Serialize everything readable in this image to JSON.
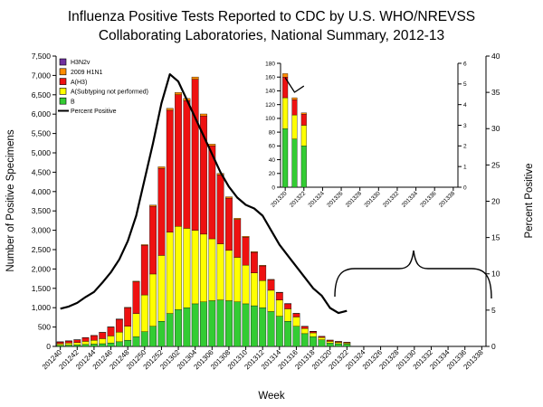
{
  "title_line1": "Influenza Positive Tests Reported to CDC by U.S. WHO/NREVSS",
  "title_line2": "Collaborating Laboratories, National Summary, 2012-13",
  "axes": {
    "y_left_label": "Number of Positive Specimens",
    "y_right_label": "Percent Positive",
    "x_label": "Week"
  },
  "legend": [
    {
      "label": "H3N2v",
      "color": "#7030A0",
      "type": "box"
    },
    {
      "label": "2009 H1N1",
      "color": "#FF8C00",
      "type": "box"
    },
    {
      "label": "A(H3)",
      "color": "#EE1111",
      "type": "box"
    },
    {
      "label": "A(Subtyping not performed)",
      "color": "#FFFF00",
      "type": "box"
    },
    {
      "label": "B",
      "color": "#33CC33",
      "type": "box"
    },
    {
      "label": "Percent Positive",
      "color": "#000000",
      "type": "line"
    }
  ],
  "chart_data": {
    "type": "bar",
    "stacked": true,
    "weeks": [
      "201240",
      "201241",
      "201242",
      "201243",
      "201244",
      "201245",
      "201246",
      "201247",
      "201248",
      "201249",
      "201250",
      "201251",
      "201252",
      "201301",
      "201302",
      "201303",
      "201304",
      "201305",
      "201306",
      "201307",
      "201308",
      "201309",
      "201310",
      "201311",
      "201312",
      "201313",
      "201314",
      "201315",
      "201316",
      "201317",
      "201318",
      "201319",
      "201320",
      "201321",
      "201322"
    ],
    "series": [
      {
        "name": "B",
        "color": "#33CC33",
        "values": [
          30,
          35,
          40,
          50,
          60,
          70,
          90,
          120,
          160,
          250,
          380,
          520,
          650,
          850,
          950,
          1000,
          1100,
          1150,
          1180,
          1200,
          1180,
          1150,
          1100,
          1050,
          1000,
          900,
          780,
          650,
          520,
          330,
          250,
          170,
          85,
          70,
          60
        ]
      },
      {
        "name": "A(Subtyping not performed)",
        "color": "#FFFF00",
        "values": [
          40,
          50,
          60,
          80,
          100,
          130,
          180,
          250,
          360,
          600,
          950,
          1350,
          1700,
          2100,
          2150,
          2050,
          1900,
          1750,
          1600,
          1450,
          1300,
          1150,
          1000,
          850,
          700,
          550,
          420,
          320,
          240,
          130,
          100,
          62,
          45,
          35,
          30
        ]
      },
      {
        "name": "A(H3)",
        "color": "#EE1111",
        "values": [
          45,
          55,
          70,
          95,
          120,
          160,
          230,
          330,
          480,
          820,
          1280,
          1750,
          2250,
          3150,
          3400,
          3300,
          3900,
          3050,
          2400,
          1780,
          1350,
          980,
          720,
          530,
          380,
          270,
          190,
          130,
          90,
          55,
          37,
          26,
          30,
          22,
          16
        ]
      },
      {
        "name": "2009 H1N1",
        "color": "#FF8C00",
        "values": [
          2,
          2,
          3,
          3,
          4,
          5,
          6,
          8,
          10,
          15,
          20,
          30,
          40,
          50,
          60,
          55,
          60,
          55,
          45,
          40,
          35,
          30,
          25,
          20,
          15,
          12,
          10,
          8,
          6,
          5,
          4,
          3,
          5,
          3,
          2
        ]
      },
      {
        "name": "H3N2v",
        "color": "#7030A0",
        "values": [
          3,
          2,
          1,
          0,
          0,
          0,
          0,
          0,
          0,
          0,
          0,
          0,
          0,
          0,
          0,
          0,
          0,
          0,
          0,
          0,
          0,
          0,
          0,
          0,
          0,
          0,
          0,
          0,
          0,
          0,
          0,
          0,
          0,
          0,
          0
        ]
      }
    ],
    "percent_positive": [
      5.2,
      5.5,
      6.0,
      6.8,
      7.5,
      8.8,
      10.2,
      12.0,
      14.5,
      18.0,
      23.0,
      28.0,
      33.5,
      37.5,
      36.5,
      34.0,
      31.5,
      29.0,
      26.5,
      24.0,
      22.0,
      20.5,
      19.5,
      19.0,
      18.0,
      16.0,
      14.0,
      12.5,
      11.0,
      9.5,
      8.0,
      7.0,
      5.3,
      4.6,
      4.9
    ],
    "x_ticks": [
      "201240",
      "201242",
      "201244",
      "201246",
      "201248",
      "201250",
      "201252",
      "201302",
      "201304",
      "201306",
      "201308",
      "201310",
      "201312",
      "201314",
      "201316",
      "201318",
      "201320",
      "201322",
      "201324",
      "201326",
      "201328",
      "201330",
      "201332",
      "201334",
      "201336",
      "201338"
    ],
    "x_tick_every": 2,
    "x_slots_total": 51,
    "ylim_left": [
      0,
      7500
    ],
    "ylim_right": [
      0,
      40
    ],
    "y_left_ticks": [
      "0",
      "500",
      "1,000",
      "1,500",
      "2,000",
      "2,500",
      "3,000",
      "3,500",
      "4,000",
      "4,500",
      "5,000",
      "5,500",
      "6,000",
      "6,500",
      "7,000",
      "7,500"
    ],
    "y_right_ticks": [
      "0",
      "5",
      "10",
      "15",
      "20",
      "25",
      "30",
      "35",
      "40"
    ]
  },
  "inset": {
    "type": "bar",
    "stacked": true,
    "weeks": [
      "201320",
      "201321",
      "201322"
    ],
    "series": [
      {
        "name": "B",
        "color": "#33CC33",
        "values": [
          85,
          70,
          60
        ]
      },
      {
        "name": "A(Subtyping not performed)",
        "color": "#FFFF00",
        "values": [
          45,
          35,
          30
        ]
      },
      {
        "name": "A(H3)",
        "color": "#EE1111",
        "values": [
          30,
          22,
          16
        ]
      },
      {
        "name": "2009 H1N1",
        "color": "#FF8C00",
        "values": [
          5,
          3,
          2
        ]
      },
      {
        "name": "H3N2v",
        "color": "#7030A0",
        "values": [
          0,
          0,
          0
        ]
      }
    ],
    "percent_positive": [
      5.3,
      4.6,
      4.9
    ],
    "x_ticks": [
      "201320",
      "201322",
      "201324",
      "201326",
      "201328",
      "201330",
      "201332",
      "201334",
      "201336",
      "201338"
    ],
    "x_tick_every": 2,
    "x_slots_total": 19,
    "ylim_left": [
      0,
      180
    ],
    "ylim_right": [
      0,
      6
    ],
    "y_left_ticks": [
      "0",
      "20",
      "40",
      "60",
      "80",
      "100",
      "120",
      "140",
      "160",
      "180"
    ],
    "y_right_ticks": [
      "0",
      "1",
      "2",
      "3",
      "4",
      "5",
      "6"
    ]
  }
}
